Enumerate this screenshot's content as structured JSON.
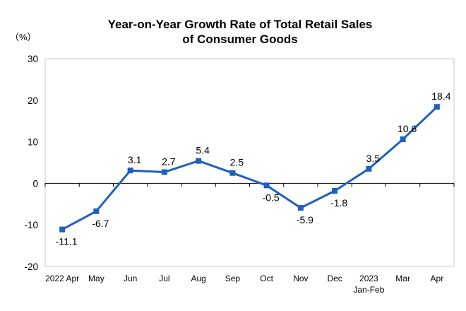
{
  "chart_data": {
    "type": "line",
    "title_lines": [
      "Year-on-Year Growth Rate of Total Retail Sales",
      "of Consumer Goods"
    ],
    "unit_label": "（%）",
    "xlabel": "",
    "ylabel": "",
    "ylim": [
      -20,
      30
    ],
    "yticks": [
      30,
      20,
      10,
      0,
      -10,
      -20
    ],
    "ytick_labels": [
      "30",
      "20",
      "10",
      "0",
      "-10",
      "-20"
    ],
    "grid": false,
    "legend": "none",
    "categories": [
      {
        "line1": "2022 Apr",
        "line2": ""
      },
      {
        "line1": "May",
        "line2": ""
      },
      {
        "line1": "Jun",
        "line2": ""
      },
      {
        "line1": "Jul",
        "line2": ""
      },
      {
        "line1": "Aug",
        "line2": ""
      },
      {
        "line1": "Sep",
        "line2": ""
      },
      {
        "line1": "Oct",
        "line2": ""
      },
      {
        "line1": "Nov",
        "line2": ""
      },
      {
        "line1": "Dec",
        "line2": ""
      },
      {
        "line1": "2023",
        "line2": "Jan-Feb"
      },
      {
        "line1": "Mar",
        "line2": ""
      },
      {
        "line1": "Apr",
        "line2": ""
      }
    ],
    "values": [
      -11.1,
      -6.7,
      3.1,
      2.7,
      5.4,
      2.5,
      -0.5,
      -5.9,
      -1.8,
      3.5,
      10.6,
      18.4
    ],
    "value_labels": [
      "-11.1",
      "-6.7",
      "3.1",
      "2.7",
      "5.4",
      "2.5",
      "-0.5",
      "-5.9",
      "-1.8",
      "3.5",
      "10.6",
      "18.4"
    ],
    "label_positions": [
      "below",
      "below",
      "above",
      "above",
      "above",
      "above",
      "below",
      "below",
      "below",
      "above",
      "above",
      "above"
    ],
    "line_color": "#1f5fbf",
    "axis_color": "#000000",
    "frame_color": "#c8c8c8"
  }
}
